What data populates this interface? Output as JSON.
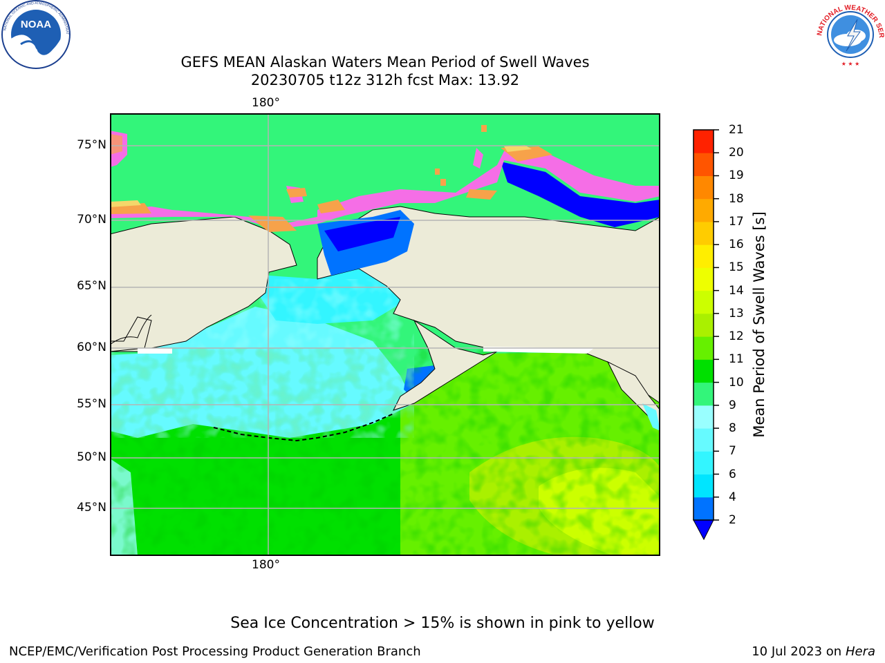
{
  "title_line1": "GEFS MEAN Alaskan Waters Mean Period of Swell Waves",
  "title_line2": "20230705 t12z 312h fcst   Max: 13.92",
  "map": {
    "lon_label_top": "180°",
    "lon_label_bottom": "180°",
    "lat_labels": [
      "75°N",
      "70°N",
      "65°N",
      "60°N",
      "55°N",
      "50°N",
      "45°N"
    ],
    "colors": {
      "land": "#ecebd8",
      "ice_pink": "#f56ee6",
      "ice_orange": "#f7a24a",
      "ice_yellow": "#f4d76a",
      "ice_white": "#ffffff",
      "grid": "#b4b4b4"
    }
  },
  "colorbar": {
    "label": "Mean Period of Swell Waves [s]",
    "tick_labels": [
      "2",
      "4",
      "6",
      "7",
      "8",
      "9",
      "10",
      "11",
      "12",
      "13",
      "14",
      "15",
      "16",
      "17",
      "18",
      "19",
      "20",
      "21"
    ],
    "segment_colors": [
      "#0073ff",
      "#00e5ff",
      "#33f5ff",
      "#66faff",
      "#99ffff",
      "#33f57a",
      "#00e000",
      "#66f000",
      "#aaf000",
      "#ccff00",
      "#eeff00",
      "#ffee00",
      "#ffcc00",
      "#ffaa00",
      "#ff8800",
      "#ff5500",
      "#ff2200",
      "#ff0000"
    ],
    "underflow_color": "#0000ff"
  },
  "footer_note": "Sea Ice Concentration > 15% is shown in pink to yellow",
  "footer_left": "NCEP/EMC/Verification Post Processing Product Generation Branch",
  "footer_date": "10 Jul 2023 on ",
  "footer_machine": "Hera",
  "logos": {
    "noaa_text": "NOAA",
    "nws_text": "NATIONAL WEATHER SERVICE"
  }
}
